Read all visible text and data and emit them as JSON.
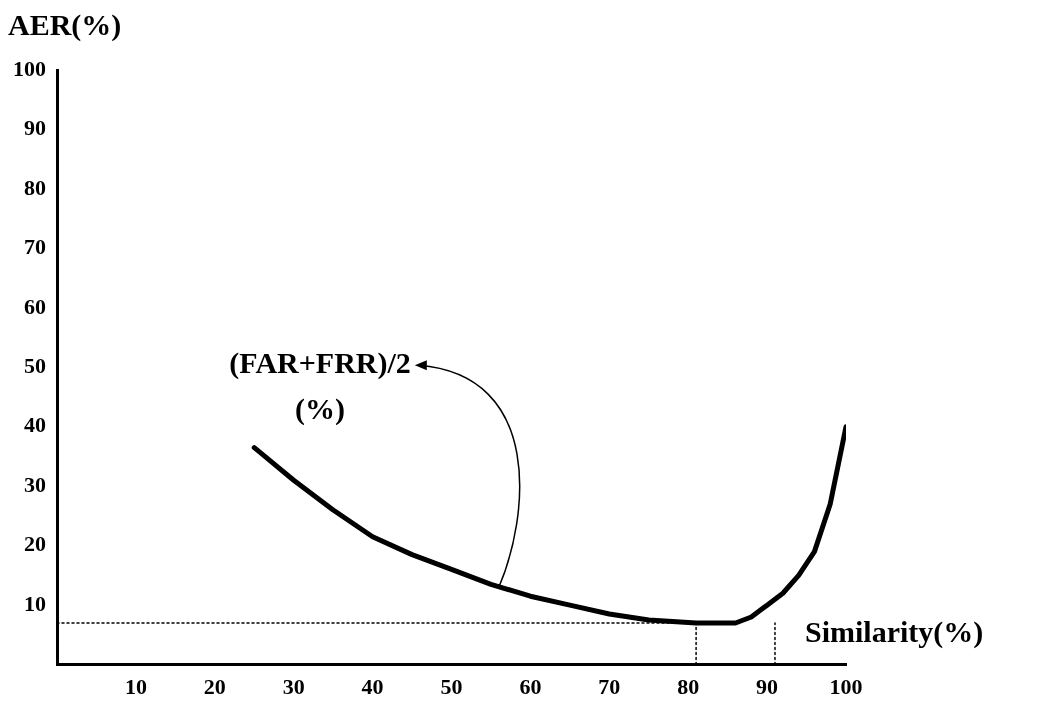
{
  "chart_data": {
    "type": "line",
    "xlabel": "Similarity(%)",
    "ylabel": "AER(%)",
    "x": [
      25,
      30,
      35,
      40,
      45,
      50,
      55,
      60,
      65,
      70,
      75,
      81,
      86,
      88,
      90,
      92,
      94,
      96,
      98,
      100
    ],
    "series": [
      {
        "color": "#000000",
        "values": [
          36.5,
          31,
          26,
          21.5,
          18.5,
          16,
          13.5,
          11.5,
          10,
          8.5,
          7.5,
          7,
          7,
          8,
          10,
          12,
          15,
          19,
          27,
          40
        ]
      },
      {
        "color": "#000000",
        "line_style": "dotted",
        "x": [
          0,
          81
        ],
        "values": [
          7,
          7
        ]
      },
      {
        "color": "#000000",
        "line_style": "dotted",
        "x": [
          81,
          81
        ],
        "values": [
          0,
          7
        ]
      },
      {
        "color": "#000000",
        "line_style": "dotted",
        "x": [
          91,
          91
        ],
        "values": [
          0,
          7
        ]
      }
    ],
    "xlim": [
      0,
      100
    ],
    "ylim": [
      0,
      100
    ],
    "xticks": [
      10,
      20,
      30,
      40,
      50,
      60,
      70,
      80,
      90,
      100
    ],
    "yticks": [
      10,
      20,
      30,
      40,
      50,
      60,
      70,
      80,
      90,
      100
    ],
    "grid": false,
    "legend": false,
    "marker": "none",
    "line_style": "solid",
    "annotations": [
      {
        "text": "(FAR+FRR)/2\n(%)",
        "x": 56,
        "y": 13
      }
    ]
  }
}
